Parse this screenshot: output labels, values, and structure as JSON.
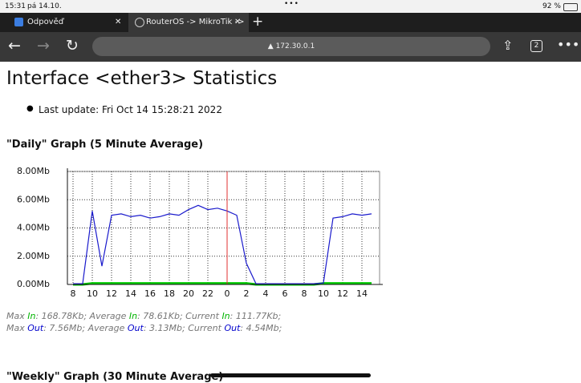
{
  "status_bar": {
    "time": "15:31",
    "date": "pá 14.10.",
    "battery": "92 %"
  },
  "tabs": [
    "Odpověď",
    "RouterOS -> MikroTik ->"
  ],
  "address": "172.30.0.1",
  "tab_count": "2",
  "heading": "Interface <ether3> Statistics",
  "last_update": "Last update: Fri Oct 14 15:28:21 2022",
  "daily_title": "\"Daily\" Graph (5 Minute Average)",
  "stats": [
    [
      "Max ",
      "In",
      ": 168.78Kb; Average ",
      "In",
      ": 78.61Kb; Current ",
      "In",
      ": 111.77Kb;"
    ],
    [
      "Max ",
      "Out",
      ": 7.56Mb; Average ",
      "Out",
      ": 3.13Mb; Current ",
      "Out",
      ": 4.54Mb;"
    ]
  ],
  "weekly_title": "\"Weekly\" Graph (30 Minute Average)",
  "chart_data": {
    "type": "line",
    "categories": [
      "8",
      null,
      "10",
      null,
      "12",
      null,
      "14",
      null,
      "16",
      null,
      "18",
      null,
      "20",
      null,
      "22",
      null,
      "0",
      null,
      "2",
      null,
      "4",
      null,
      "6",
      null,
      "8",
      null,
      "10",
      null,
      "12",
      null,
      "14",
      null
    ],
    "series": [
      {
        "color": "#00cc00",
        "values": [
          0,
          0,
          0.08,
          0.08,
          0.08,
          0.08,
          0.08,
          0.08,
          0.08,
          0.08,
          0.08,
          0.08,
          0.08,
          0.08,
          0.08,
          0.08,
          0.08,
          0.08,
          0.08,
          0,
          0,
          0,
          0,
          0,
          0,
          0,
          0.08,
          0.08,
          0.08,
          0.08,
          0.08,
          0.08
        ]
      },
      {
        "color": "#1a1acc",
        "values": [
          0.05,
          0.05,
          5.2,
          1.3,
          4.9,
          5.0,
          4.8,
          4.9,
          4.7,
          4.8,
          5.0,
          4.9,
          5.3,
          5.6,
          5.3,
          5.4,
          5.2,
          4.9,
          1.5,
          0.05,
          0.05,
          0.05,
          0.05,
          0.05,
          0.05,
          0.05,
          0.1,
          4.7,
          4.8,
          5.0,
          4.9,
          5.0
        ]
      }
    ],
    "ylim": [
      0,
      8
    ],
    "yticks": [
      {
        "value": 0,
        "label": "0.00Mb"
      },
      {
        "value": 2,
        "label": "2.00Mb"
      },
      {
        "value": 4,
        "label": "4.00Mb"
      },
      {
        "value": 6,
        "label": "6.00Mb"
      },
      {
        "value": 8,
        "label": "8.00Mb"
      }
    ],
    "grid": true
  }
}
